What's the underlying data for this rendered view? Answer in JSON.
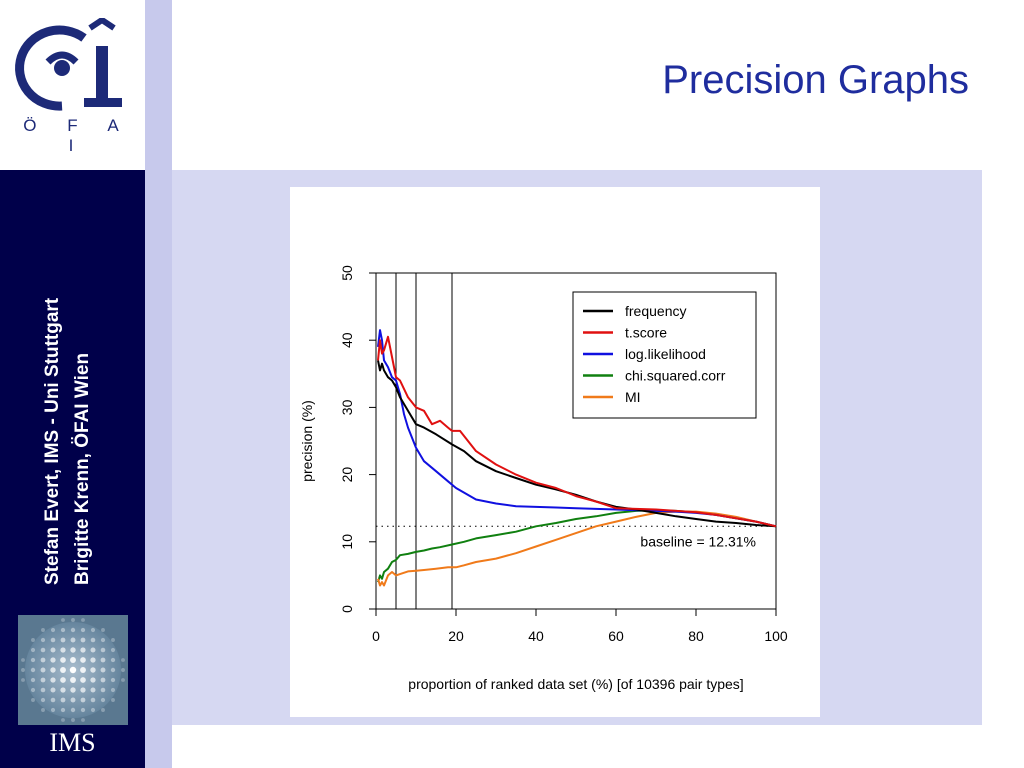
{
  "slide": {
    "title": "Precision Graphs",
    "authors": [
      "Stefan Evert, IMS - Uni Stuttgart",
      "Brigitte Krenn, ÖFAI Wien"
    ],
    "logo_letters": "Ö F A I",
    "ims_label": "IMS"
  },
  "colors": {
    "title": "#1f2d9e",
    "sidebar_dark": "#00004a",
    "stripe": "#c7c9ec",
    "content_band": "#d6d8f2"
  },
  "chart_data": {
    "type": "line",
    "xlabel": "proportion of ranked data set (%) [of 10396 pair types]",
    "ylabel": "precision (%)",
    "xlim": [
      0,
      100
    ],
    "ylim": [
      0,
      50
    ],
    "xticks": [
      0,
      20,
      40,
      60,
      80,
      100
    ],
    "yticks": [
      0,
      10,
      20,
      30,
      40,
      50
    ],
    "vlines": [
      0,
      5,
      10,
      19
    ],
    "baseline": {
      "value": 12.31,
      "label": "baseline = 12.31%"
    },
    "legend_position": "top-right",
    "series": [
      {
        "name": "frequency",
        "color": "#000000",
        "x": [
          0.5,
          1,
          1.5,
          2,
          3,
          4,
          5,
          6,
          8,
          10,
          12,
          15,
          19,
          22,
          25,
          30,
          35,
          40,
          45,
          50,
          55,
          60,
          65,
          70,
          75,
          80,
          85,
          90,
          95,
          100
        ],
        "y": [
          37,
          35.5,
          36.5,
          35.5,
          34.5,
          34,
          33,
          31.5,
          29.5,
          27.5,
          27,
          26,
          24.5,
          23.5,
          22,
          20.5,
          19.5,
          18.5,
          17.8,
          17,
          16,
          15.2,
          14.8,
          14.3,
          13.8,
          13.4,
          13,
          12.8,
          12.5,
          12.31
        ]
      },
      {
        "name": "t.score",
        "color": "#e01010",
        "x": [
          0.5,
          1,
          1.5,
          2,
          3,
          4,
          5,
          6,
          8,
          10,
          12,
          14,
          16,
          18,
          19,
          21,
          23,
          25,
          30,
          35,
          40,
          45,
          50,
          55,
          60,
          65,
          70,
          75,
          80,
          85,
          90,
          95,
          100
        ],
        "y": [
          37,
          40,
          38,
          38.5,
          40.5,
          37.5,
          34.5,
          34,
          31.5,
          30,
          29.5,
          27.5,
          28,
          27,
          26.5,
          26.5,
          25,
          23.5,
          21.5,
          20,
          18.8,
          18,
          16.8,
          16,
          15,
          14.9,
          14.8,
          14.6,
          14.4,
          14,
          13.5,
          13,
          12.31
        ]
      },
      {
        "name": "log.likelihood",
        "color": "#1010e0",
        "x": [
          0.5,
          1,
          1.5,
          2,
          3,
          4,
          5,
          6,
          7,
          8,
          10,
          12,
          15,
          18,
          20,
          25,
          30,
          35,
          40,
          45,
          50,
          55,
          60,
          65,
          70,
          75,
          80,
          85,
          90,
          95,
          100
        ],
        "y": [
          39,
          41.5,
          40,
          37,
          36,
          34.5,
          34,
          32,
          29,
          27,
          24,
          22,
          20.5,
          19,
          18,
          16.3,
          15.7,
          15.3,
          15.2,
          15.1,
          15,
          14.9,
          14.8,
          14.7,
          14.6,
          14.5,
          14.3,
          14,
          13.5,
          13,
          12.31
        ]
      },
      {
        "name": "chi.squared.corr",
        "color": "#108010",
        "x": [
          0.5,
          1,
          1.5,
          2,
          3,
          4,
          5,
          6,
          8,
          10,
          12,
          14,
          16,
          19,
          22,
          25,
          30,
          35,
          40,
          45,
          50,
          55,
          60,
          65,
          70,
          75,
          80,
          85,
          90,
          95,
          100
        ],
        "y": [
          4,
          5,
          4.5,
          5.5,
          6,
          7,
          7.3,
          8,
          8.2,
          8.5,
          8.7,
          9,
          9.2,
          9.6,
          10,
          10.5,
          11,
          11.5,
          12.3,
          12.8,
          13.4,
          13.8,
          14.3,
          14.6,
          14.7,
          14.6,
          14.4,
          14,
          13.5,
          13,
          12.31
        ]
      },
      {
        "name": "MI",
        "color": "#f07a1a",
        "x": [
          0.5,
          1,
          1.5,
          2,
          3,
          4,
          5,
          6,
          8,
          10,
          12,
          15,
          18,
          20,
          22,
          25,
          30,
          35,
          40,
          45,
          50,
          55,
          60,
          65,
          70,
          75,
          80,
          85,
          90,
          95,
          100
        ],
        "y": [
          4.5,
          3.5,
          4,
          3.5,
          5,
          5.5,
          5,
          5.2,
          5.6,
          5.7,
          5.8,
          6,
          6.2,
          6.2,
          6.5,
          7,
          7.5,
          8.3,
          9.3,
          10.3,
          11.3,
          12.3,
          13,
          13.7,
          14.3,
          14.5,
          14.5,
          14.2,
          13.7,
          13,
          12.31
        ]
      }
    ]
  }
}
